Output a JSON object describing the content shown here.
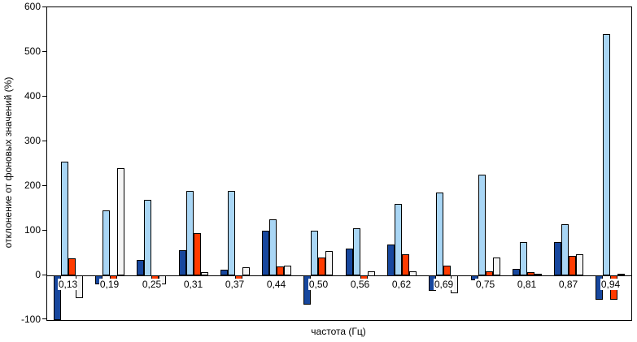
{
  "chart_data": {
    "type": "bar",
    "title": "",
    "xlabel": "частота (Гц)",
    "ylabel": "отклонение от фоновых значений (%)",
    "categories": [
      "0,13",
      "0,19",
      "0,25",
      "0,31",
      "0,37",
      "0,44",
      "0,50",
      "0,56",
      "0,62",
      "0,69",
      "0,75",
      "0,81",
      "0,87",
      "0,94"
    ],
    "series": [
      {
        "name": "series-1-dark-blue",
        "color": "#17479E",
        "values": [
          -100,
          -20,
          35,
          57,
          13,
          100,
          -65,
          60,
          70,
          -35,
          -10,
          15,
          75,
          -55
        ]
      },
      {
        "name": "series-2-light-blue",
        "color": "#A9D6F5",
        "values": [
          255,
          145,
          170,
          190,
          190,
          125,
          100,
          105,
          160,
          185,
          225,
          75,
          115,
          540
        ]
      },
      {
        "name": "series-3-orange-red",
        "color": "#FF3B00",
        "values": [
          38,
          -15,
          -30,
          95,
          -25,
          20,
          40,
          -30,
          48,
          22,
          10,
          8,
          43,
          -55
        ]
      },
      {
        "name": "series-4-white",
        "color": "#F5F5F5",
        "values": [
          -50,
          240,
          -20,
          8,
          18,
          22,
          55,
          10,
          10,
          -40,
          40,
          3,
          48,
          3
        ]
      }
    ],
    "ylim": [
      -100,
      600
    ],
    "ytick_step": 100,
    "grid": false,
    "legend": "none",
    "bar_border_color": "#000000"
  }
}
